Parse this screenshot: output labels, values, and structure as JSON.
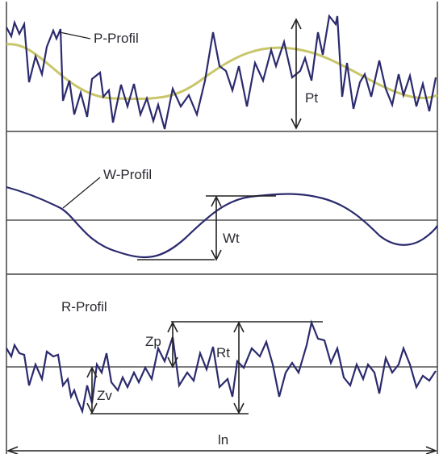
{
  "diagram": {
    "p_profile": {
      "label": "P-Profil",
      "height_label": "Pt"
    },
    "w_profile": {
      "label": "W-Profil",
      "height_label": "Wt"
    },
    "r_profile": {
      "label": "R-Profil",
      "peak_label": "Zp",
      "total_label": "Rt",
      "valley_label": "Zv"
    },
    "length_label": "ln"
  },
  "colors": {
    "profile_line": "#2b2a6e",
    "waviness_curve": "#c9c66a",
    "reference_line": "#333333",
    "panel_border": "#444444",
    "text": "#2a2a33"
  }
}
